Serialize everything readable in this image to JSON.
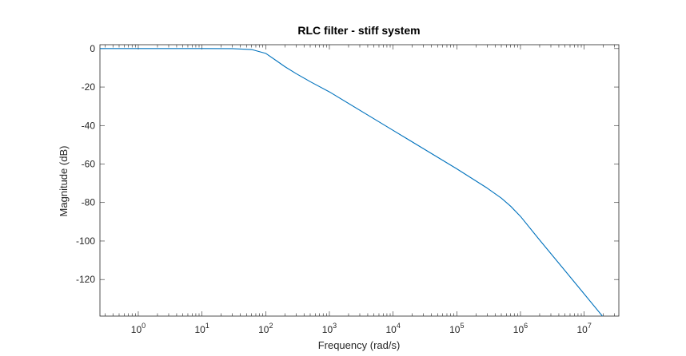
{
  "chart_data": {
    "type": "line",
    "title": "RLC filter - stiff system",
    "xlabel": "Frequency  (rad/s)",
    "ylabel": "Magnitude (dB)",
    "xscale": "log",
    "xlim": [
      0.25,
      35000000
    ],
    "ylim": [
      -139,
      2
    ],
    "grid": false,
    "x_tick_labels": [
      {
        "base": "10",
        "exp": "0",
        "value": 1
      },
      {
        "base": "10",
        "exp": "1",
        "value": 10
      },
      {
        "base": "10",
        "exp": "2",
        "value": 100
      },
      {
        "base": "10",
        "exp": "3",
        "value": 1000
      },
      {
        "base": "10",
        "exp": "4",
        "value": 10000
      },
      {
        "base": "10",
        "exp": "5",
        "value": 100000
      },
      {
        "base": "10",
        "exp": "6",
        "value": 1000000
      },
      {
        "base": "10",
        "exp": "7",
        "value": 10000000
      }
    ],
    "y_ticks": [
      0,
      -20,
      -40,
      -60,
      -80,
      -100,
      -120
    ],
    "y_tick_labels": [
      "0",
      "-20",
      "-40",
      "-60",
      "-80",
      "-100",
      "-120"
    ],
    "series": [
      {
        "color": "#0072BD",
        "x": [
          0.25,
          1,
          10,
          30,
          60,
          100,
          150,
          200,
          300,
          500,
          1000,
          10000,
          100000,
          300000,
          500000,
          700000,
          1000000,
          2000000,
          5000000,
          10000000,
          20000000,
          30000000
        ],
        "y": [
          0,
          0,
          0,
          -0.05,
          -0.5,
          -2.5,
          -6.5,
          -9.4,
          -13,
          -17.2,
          -22.5,
          -42.5,
          -62.5,
          -72.5,
          -77.7,
          -81.9,
          -87.2,
          -99.5,
          -115.4,
          -127.5,
          -139.6,
          -146.6
        ]
      }
    ]
  },
  "colors": {
    "axes": "#262626",
    "line": "#0072BD",
    "background": "#ffffff"
  }
}
